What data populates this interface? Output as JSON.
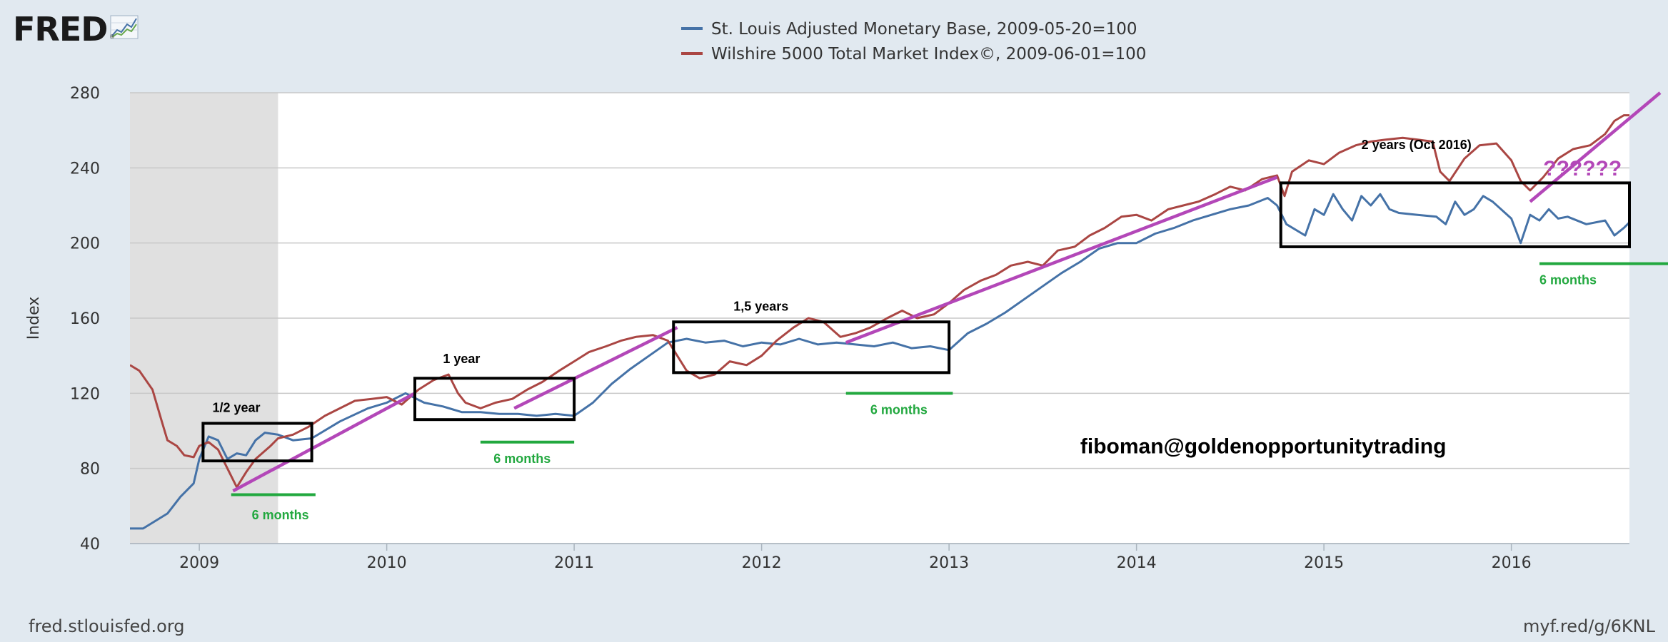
{
  "brand": {
    "logo_text": "FRED",
    "registered": "®"
  },
  "footer": {
    "source": "fred.stlouisfed.org",
    "short_link": "myf.red/g/6KNL"
  },
  "colors": {
    "monetary_base": "#4572a7",
    "wilshire": "#aa4643",
    "trend": "#b347b8",
    "annotation_green": "#22a83f",
    "box": "#000000",
    "recession": "#e0e0e0",
    "plot_bg": "#ffffff",
    "grid": "#c8c8c8"
  },
  "chart_data": {
    "type": "line",
    "xlabel": "",
    "ylabel": "Index",
    "ylim": [
      40,
      280
    ],
    "yticks": [
      40,
      80,
      120,
      160,
      200,
      240,
      280
    ],
    "xlim": [
      2008.63,
      2016.63
    ],
    "xticks": [
      2009,
      2010,
      2011,
      2012,
      2013,
      2014,
      2015,
      2016
    ],
    "xtick_labels": [
      "2009",
      "2010",
      "2011",
      "2012",
      "2013",
      "2014",
      "2015",
      "2016"
    ],
    "grid": true,
    "legend_position": "top-center",
    "recession_shading": [
      [
        2008.63,
        2009.42
      ]
    ],
    "series": [
      {
        "name": "St. Louis Adjusted Monetary Base, 2009-05-20=100",
        "color": "#4572a7",
        "points": [
          [
            2008.63,
            48
          ],
          [
            2008.7,
            48
          ],
          [
            2008.83,
            56
          ],
          [
            2008.9,
            65
          ],
          [
            2008.97,
            72
          ],
          [
            2009.0,
            85
          ],
          [
            2009.05,
            97
          ],
          [
            2009.1,
            95
          ],
          [
            2009.15,
            85
          ],
          [
            2009.2,
            88
          ],
          [
            2009.25,
            87
          ],
          [
            2009.3,
            95
          ],
          [
            2009.35,
            99
          ],
          [
            2009.42,
            98
          ],
          [
            2009.5,
            95
          ],
          [
            2009.6,
            96
          ],
          [
            2009.75,
            105
          ],
          [
            2009.9,
            112
          ],
          [
            2010.0,
            115
          ],
          [
            2010.1,
            120
          ],
          [
            2010.2,
            115
          ],
          [
            2010.3,
            113
          ],
          [
            2010.4,
            110
          ],
          [
            2010.5,
            110
          ],
          [
            2010.6,
            109
          ],
          [
            2010.7,
            109
          ],
          [
            2010.8,
            108
          ],
          [
            2010.9,
            109
          ],
          [
            2011.0,
            108
          ],
          [
            2011.1,
            115
          ],
          [
            2011.2,
            125
          ],
          [
            2011.3,
            133
          ],
          [
            2011.4,
            140
          ],
          [
            2011.5,
            147
          ],
          [
            2011.6,
            149
          ],
          [
            2011.7,
            147
          ],
          [
            2011.8,
            148
          ],
          [
            2011.9,
            145
          ],
          [
            2012.0,
            147
          ],
          [
            2012.1,
            146
          ],
          [
            2012.2,
            149
          ],
          [
            2012.3,
            146
          ],
          [
            2012.4,
            147
          ],
          [
            2012.5,
            146
          ],
          [
            2012.6,
            145
          ],
          [
            2012.7,
            147
          ],
          [
            2012.8,
            144
          ],
          [
            2012.9,
            145
          ],
          [
            2013.0,
            143
          ],
          [
            2013.1,
            152
          ],
          [
            2013.2,
            157
          ],
          [
            2013.3,
            163
          ],
          [
            2013.4,
            170
          ],
          [
            2013.5,
            177
          ],
          [
            2013.6,
            184
          ],
          [
            2013.7,
            190
          ],
          [
            2013.8,
            197
          ],
          [
            2013.9,
            200
          ],
          [
            2014.0,
            200
          ],
          [
            2014.1,
            205
          ],
          [
            2014.2,
            208
          ],
          [
            2014.3,
            212
          ],
          [
            2014.4,
            215
          ],
          [
            2014.5,
            218
          ],
          [
            2014.6,
            220
          ],
          [
            2014.7,
            224
          ],
          [
            2014.75,
            220
          ],
          [
            2014.8,
            210
          ],
          [
            2014.9,
            204
          ],
          [
            2014.95,
            218
          ],
          [
            2015.0,
            215
          ],
          [
            2015.05,
            226
          ],
          [
            2015.1,
            218
          ],
          [
            2015.15,
            212
          ],
          [
            2015.2,
            225
          ],
          [
            2015.25,
            220
          ],
          [
            2015.3,
            226
          ],
          [
            2015.35,
            218
          ],
          [
            2015.4,
            216
          ],
          [
            2015.5,
            215
          ],
          [
            2015.6,
            214
          ],
          [
            2015.65,
            210
          ],
          [
            2015.7,
            222
          ],
          [
            2015.75,
            215
          ],
          [
            2015.8,
            218
          ],
          [
            2015.85,
            225
          ],
          [
            2015.9,
            222
          ],
          [
            2016.0,
            213
          ],
          [
            2016.05,
            200
          ],
          [
            2016.1,
            215
          ],
          [
            2016.15,
            212
          ],
          [
            2016.2,
            218
          ],
          [
            2016.25,
            213
          ],
          [
            2016.3,
            214
          ],
          [
            2016.4,
            210
          ],
          [
            2016.5,
            212
          ],
          [
            2016.55,
            204
          ],
          [
            2016.6,
            208
          ],
          [
            2016.63,
            211
          ]
        ]
      },
      {
        "name": "Wilshire 5000 Total Market Index©, 2009-06-01=100",
        "color": "#aa4643",
        "points": [
          [
            2008.63,
            135
          ],
          [
            2008.68,
            132
          ],
          [
            2008.75,
            122
          ],
          [
            2008.8,
            105
          ],
          [
            2008.83,
            95
          ],
          [
            2008.88,
            92
          ],
          [
            2008.92,
            87
          ],
          [
            2008.97,
            86
          ],
          [
            2009.0,
            92
          ],
          [
            2009.05,
            94
          ],
          [
            2009.1,
            90
          ],
          [
            2009.15,
            80
          ],
          [
            2009.2,
            70
          ],
          [
            2009.25,
            78
          ],
          [
            2009.3,
            85
          ],
          [
            2009.38,
            92
          ],
          [
            2009.42,
            96
          ],
          [
            2009.5,
            98
          ],
          [
            2009.58,
            102
          ],
          [
            2009.67,
            108
          ],
          [
            2009.75,
            112
          ],
          [
            2009.83,
            116
          ],
          [
            2009.92,
            117
          ],
          [
            2010.0,
            118
          ],
          [
            2010.08,
            114
          ],
          [
            2010.17,
            122
          ],
          [
            2010.25,
            127
          ],
          [
            2010.33,
            130
          ],
          [
            2010.38,
            120
          ],
          [
            2010.42,
            115
          ],
          [
            2010.5,
            112
          ],
          [
            2010.58,
            115
          ],
          [
            2010.67,
            117
          ],
          [
            2010.75,
            122
          ],
          [
            2010.83,
            126
          ],
          [
            2010.92,
            132
          ],
          [
            2011.0,
            137
          ],
          [
            2011.08,
            142
          ],
          [
            2011.17,
            145
          ],
          [
            2011.25,
            148
          ],
          [
            2011.33,
            150
          ],
          [
            2011.42,
            151
          ],
          [
            2011.5,
            148
          ],
          [
            2011.55,
            140
          ],
          [
            2011.6,
            132
          ],
          [
            2011.67,
            128
          ],
          [
            2011.75,
            130
          ],
          [
            2011.83,
            137
          ],
          [
            2011.92,
            135
          ],
          [
            2012.0,
            140
          ],
          [
            2012.08,
            148
          ],
          [
            2012.17,
            155
          ],
          [
            2012.25,
            160
          ],
          [
            2012.33,
            158
          ],
          [
            2012.42,
            150
          ],
          [
            2012.5,
            152
          ],
          [
            2012.58,
            155
          ],
          [
            2012.67,
            160
          ],
          [
            2012.75,
            164
          ],
          [
            2012.83,
            160
          ],
          [
            2012.92,
            162
          ],
          [
            2013.0,
            168
          ],
          [
            2013.08,
            175
          ],
          [
            2013.17,
            180
          ],
          [
            2013.25,
            183
          ],
          [
            2013.33,
            188
          ],
          [
            2013.42,
            190
          ],
          [
            2013.5,
            188
          ],
          [
            2013.58,
            196
          ],
          [
            2013.67,
            198
          ],
          [
            2013.75,
            204
          ],
          [
            2013.83,
            208
          ],
          [
            2013.92,
            214
          ],
          [
            2014.0,
            215
          ],
          [
            2014.08,
            212
          ],
          [
            2014.17,
            218
          ],
          [
            2014.25,
            220
          ],
          [
            2014.33,
            222
          ],
          [
            2014.42,
            226
          ],
          [
            2014.5,
            230
          ],
          [
            2014.58,
            228
          ],
          [
            2014.67,
            234
          ],
          [
            2014.75,
            236
          ],
          [
            2014.79,
            225
          ],
          [
            2014.83,
            238
          ],
          [
            2014.92,
            244
          ],
          [
            2015.0,
            242
          ],
          [
            2015.08,
            248
          ],
          [
            2015.17,
            252
          ],
          [
            2015.25,
            254
          ],
          [
            2015.33,
            255
          ],
          [
            2015.42,
            256
          ],
          [
            2015.5,
            255
          ],
          [
            2015.58,
            254
          ],
          [
            2015.62,
            238
          ],
          [
            2015.67,
            233
          ],
          [
            2015.75,
            245
          ],
          [
            2015.83,
            252
          ],
          [
            2015.92,
            253
          ],
          [
            2016.0,
            244
          ],
          [
            2016.05,
            233
          ],
          [
            2016.1,
            228
          ],
          [
            2016.17,
            235
          ],
          [
            2016.25,
            245
          ],
          [
            2016.33,
            250
          ],
          [
            2016.42,
            252
          ],
          [
            2016.5,
            258
          ],
          [
            2016.55,
            265
          ],
          [
            2016.6,
            268
          ],
          [
            2016.63,
            268
          ]
        ]
      }
    ],
    "trend_lines": [
      [
        [
          2009.18,
          68
        ],
        [
          2010.15,
          120
        ]
      ],
      [
        [
          2010.68,
          112
        ],
        [
          2011.55,
          155
        ]
      ],
      [
        [
          2012.45,
          147
        ],
        [
          2014.75,
          235
        ]
      ],
      [
        [
          2016.1,
          222
        ],
        [
          2016.83,
          280
        ]
      ]
    ],
    "boxes": [
      {
        "x": [
          2009.02,
          2009.6
        ],
        "y": [
          84,
          104
        ]
      },
      {
        "x": [
          2010.15,
          2011.0
        ],
        "y": [
          106,
          128
        ]
      },
      {
        "x": [
          2011.53,
          2013.0
        ],
        "y": [
          131,
          158
        ]
      },
      {
        "x": [
          2014.77,
          2016.63
        ],
        "y": [
          198,
          232
        ]
      }
    ],
    "green_lines": [
      {
        "x": [
          2009.17,
          2009.62
        ],
        "y": 66
      },
      {
        "x": [
          2010.5,
          2011.0
        ],
        "y": 94
      },
      {
        "x": [
          2012.45,
          2013.02
        ],
        "y": 120
      },
      {
        "x": [
          2016.15,
          2016.85
        ],
        "y": 189
      }
    ],
    "annotations": [
      {
        "text": "1/2 year",
        "x": 2009.07,
        "y": 110,
        "style": "label"
      },
      {
        "text": "1 year",
        "x": 2010.3,
        "y": 136,
        "style": "label"
      },
      {
        "text": "1,5 years",
        "x": 2011.85,
        "y": 164,
        "style": "label"
      },
      {
        "text": "2 years (Oct 2016)",
        "x": 2015.2,
        "y": 250,
        "style": "label"
      },
      {
        "text": "6 months",
        "x": 2009.28,
        "y": 53,
        "style": "green"
      },
      {
        "text": "6 months",
        "x": 2010.57,
        "y": 83,
        "style": "green"
      },
      {
        "text": "6 months",
        "x": 2012.58,
        "y": 109,
        "style": "green"
      },
      {
        "text": "6 months",
        "x": 2016.15,
        "y": 178,
        "style": "green"
      },
      {
        "text": "??????",
        "x": 2016.17,
        "y": 236,
        "style": "purple"
      },
      {
        "text": "fiboman@goldenopportunitytrading",
        "x": 2013.7,
        "y": 88,
        "style": "watermark"
      }
    ]
  }
}
